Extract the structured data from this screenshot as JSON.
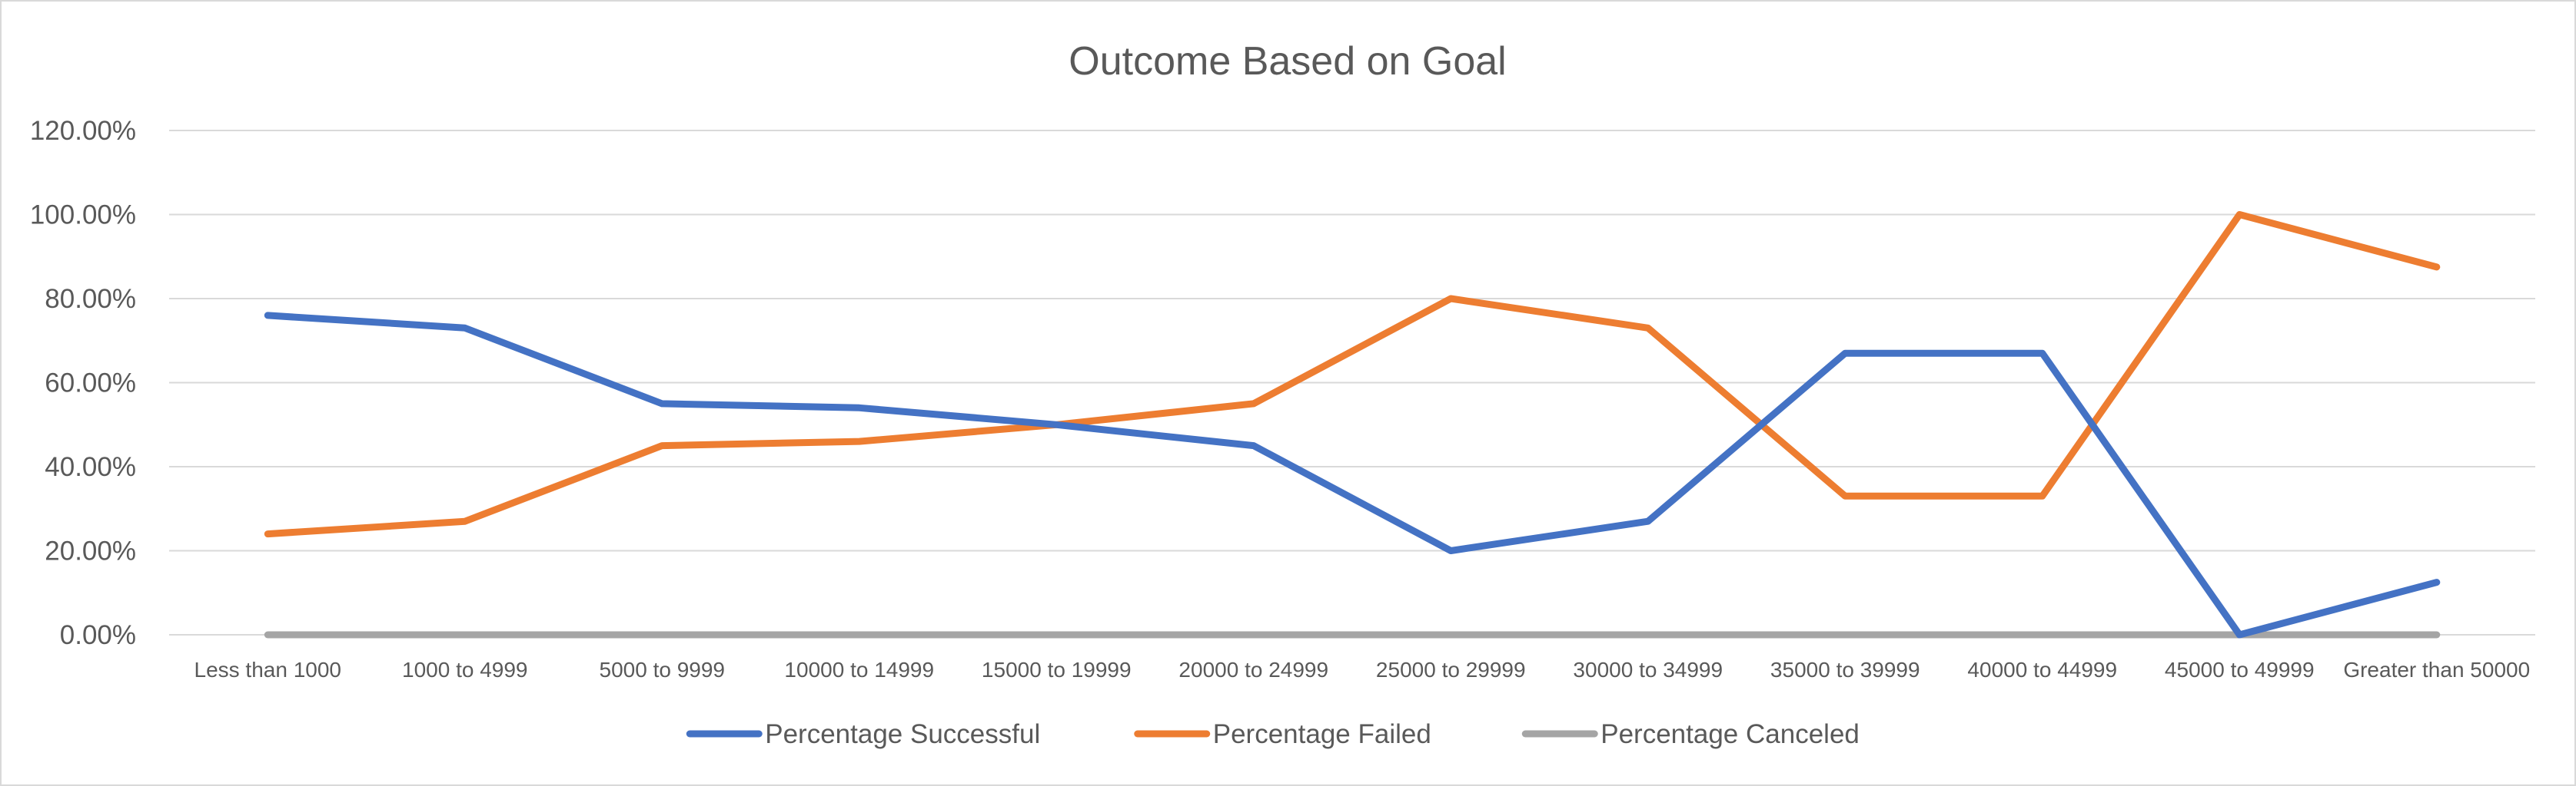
{
  "chart_data": {
    "type": "line",
    "title": "Outcome Based on Goal",
    "xlabel": "",
    "ylabel": "",
    "categories": [
      "Less than 1000",
      "1000 to 4999",
      "5000 to 9999",
      "10000 to 14999",
      "15000 to 19999",
      "20000 to 24999",
      "25000 to 29999",
      "30000 to 34999",
      "35000 to 39999",
      "40000 to 44999",
      "45000 to 49999",
      "Greater than 50000"
    ],
    "y_ticks": [
      "0.00%",
      "20.00%",
      "40.00%",
      "60.00%",
      "80.00%",
      "100.00%",
      "120.00%"
    ],
    "ylim": [
      0,
      120
    ],
    "grid": true,
    "legend_position": "bottom",
    "series": [
      {
        "name": "Percentage Successful",
        "color": "#4472C4",
        "values": [
          76,
          73,
          55,
          54,
          50,
          45,
          20,
          27,
          67,
          67,
          0,
          12.5
        ]
      },
      {
        "name": "Percentage Failed",
        "color": "#ED7D31",
        "values": [
          24,
          27,
          45,
          46,
          50,
          55,
          80,
          73,
          33,
          33,
          100,
          87.5
        ]
      },
      {
        "name": "Percentage Canceled",
        "color": "#A5A5A5",
        "values": [
          0,
          0,
          0,
          0,
          0,
          0,
          0,
          0,
          0,
          0,
          0,
          0
        ]
      }
    ]
  }
}
